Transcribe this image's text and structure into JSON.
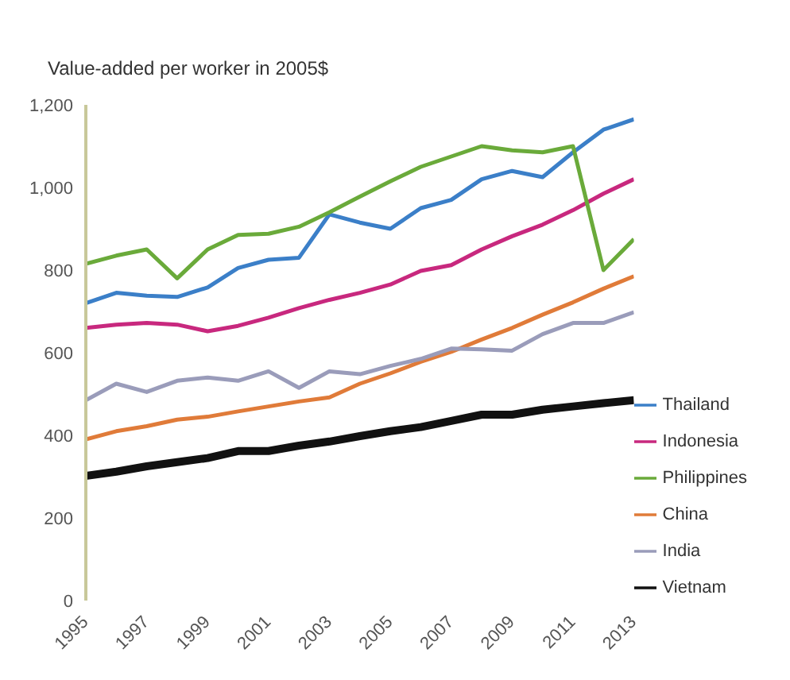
{
  "chart_data": {
    "type": "line",
    "title": "Value-added per worker in 2005$",
    "x": [
      1995,
      1996,
      1997,
      1998,
      1999,
      2000,
      2001,
      2002,
      2003,
      2004,
      2005,
      2006,
      2007,
      2008,
      2009,
      2010,
      2011,
      2012,
      2013
    ],
    "series": [
      {
        "name": "Thailand",
        "color": "#3b7fc8",
        "values": [
          720,
          745,
          738,
          735,
          758,
          805,
          825,
          830,
          935,
          915,
          900,
          950,
          970,
          1020,
          1040,
          1025,
          1085,
          1140,
          1165
        ]
      },
      {
        "name": "Indonesia",
        "color": "#c8287e",
        "values": [
          660,
          668,
          672,
          668,
          652,
          665,
          685,
          708,
          728,
          745,
          765,
          798,
          812,
          850,
          882,
          910,
          945,
          985,
          1020
        ]
      },
      {
        "name": "Philippines",
        "color": "#6aaa3a",
        "values": [
          815,
          835,
          850,
          780,
          850,
          885,
          888,
          905,
          940,
          978,
          1015,
          1050,
          1075,
          1100,
          1090,
          1085,
          1100,
          800,
          875
        ]
      },
      {
        "name": "China",
        "color": "#e07b39",
        "values": [
          390,
          410,
          422,
          438,
          445,
          458,
          470,
          482,
          492,
          525,
          550,
          578,
          602,
          632,
          660,
          692,
          722,
          755,
          785
        ]
      },
      {
        "name": "India",
        "color": "#9a9cba",
        "values": [
          485,
          525,
          505,
          532,
          540,
          532,
          555,
          515,
          555,
          548,
          568,
          585,
          610,
          608,
          605,
          645,
          672,
          672,
          698
        ]
      },
      {
        "name": "Vietnam",
        "color": "#111111",
        "values": [
          302,
          312,
          325,
          335,
          345,
          362,
          362,
          375,
          385,
          398,
          410,
          420,
          435,
          450,
          450,
          462,
          470,
          478,
          485
        ]
      }
    ],
    "xlim": [
      1995,
      2013
    ],
    "xticks": [
      1995,
      1997,
      1999,
      2001,
      2003,
      2005,
      2007,
      2009,
      2011,
      2013
    ],
    "ylim": [
      0,
      1200
    ],
    "yticks": [
      0,
      200,
      400,
      600,
      800,
      {
        "value": 1000,
        "label": "1,000"
      },
      {
        "value": 1200,
        "label": "1,200"
      }
    ],
    "grid": false,
    "legend": "bottom right",
    "marker": "none",
    "line_style": "solid"
  }
}
